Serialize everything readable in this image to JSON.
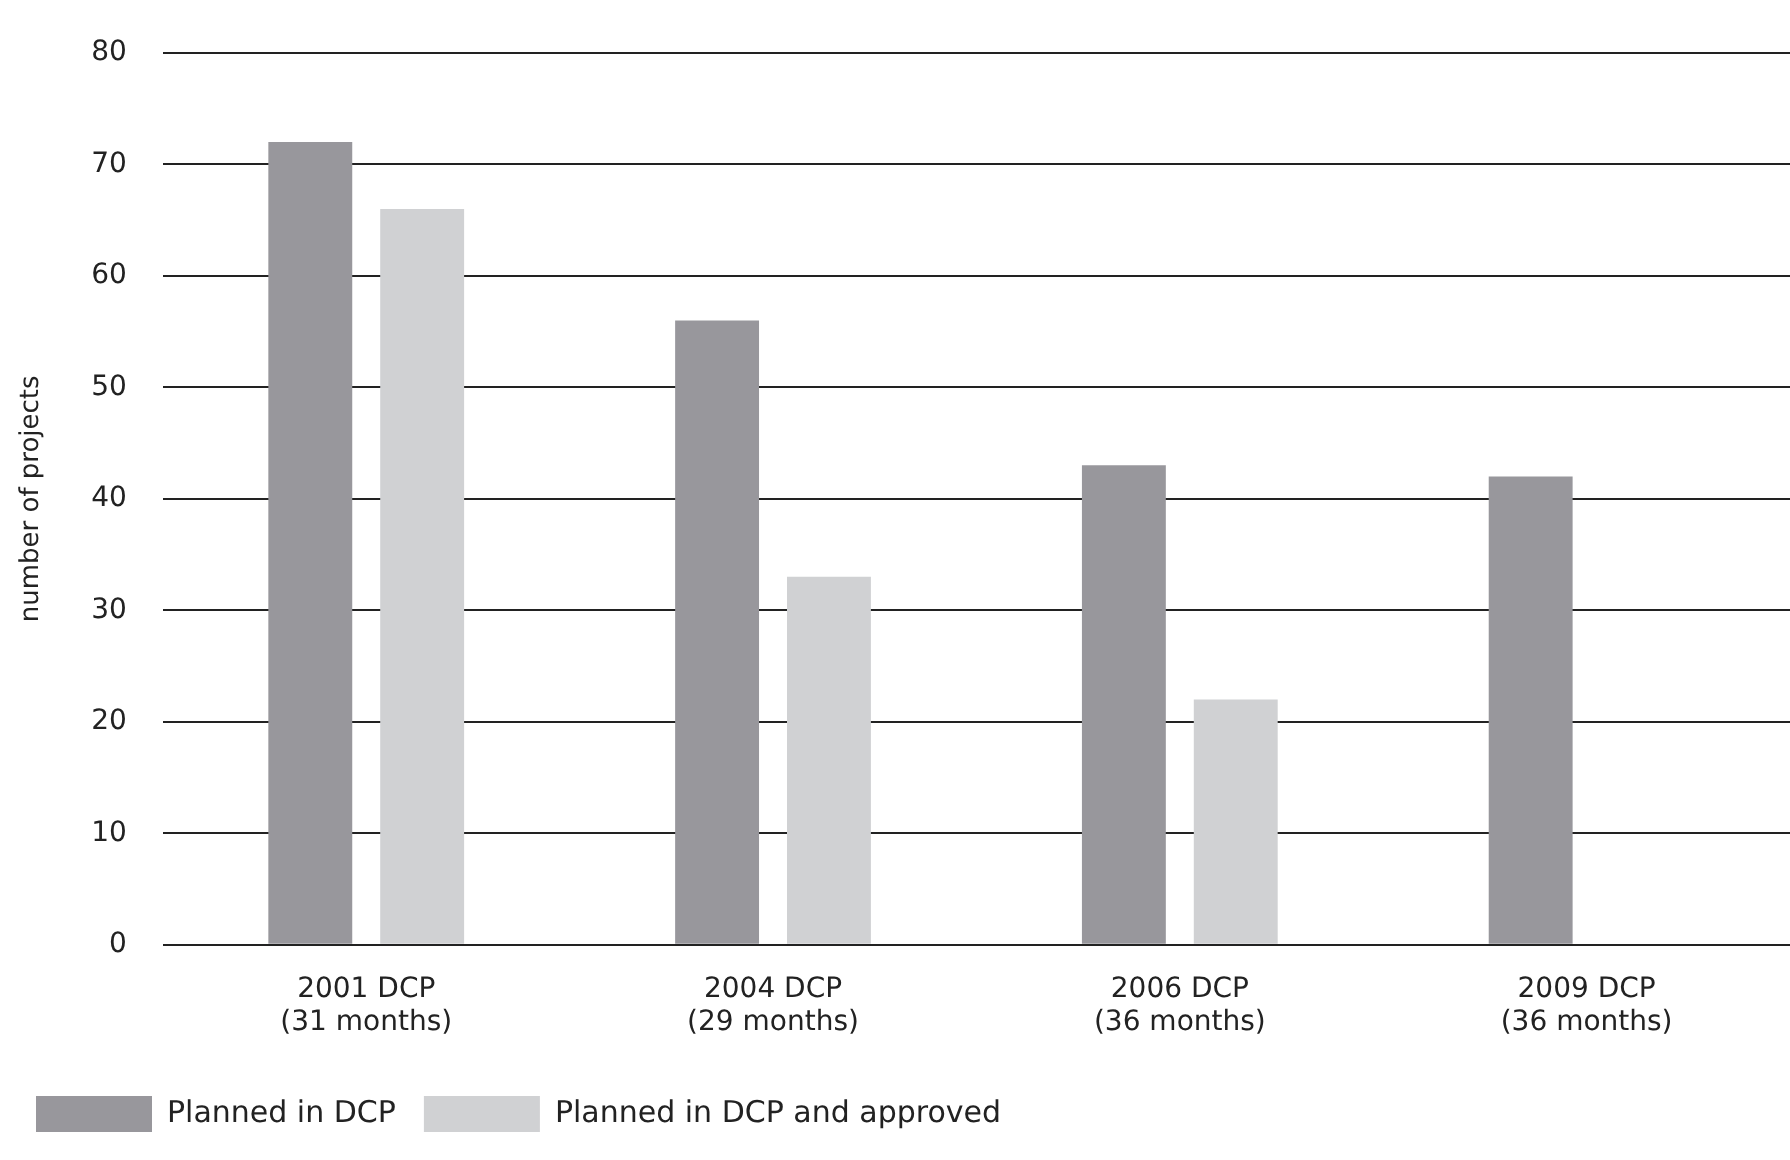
{
  "chart_data": {
    "type": "bar",
    "ylabel": "number of projects",
    "categories": [
      "2001 DCP\n(31 months)",
      "2004 DCP\n(29 months)",
      "2006 DCP\n(36 months)",
      "2009 DCP\n(36 months)"
    ],
    "series": [
      {
        "name": "Planned in DCP",
        "color": "#98979c",
        "values": [
          72,
          56,
          43,
          42
        ]
      },
      {
        "name": "Planned in DCP and approved",
        "color": "#d0d1d3",
        "values": [
          66,
          33,
          22,
          null
        ]
      }
    ],
    "ylim": [
      0,
      80
    ],
    "yticks": [
      0,
      10,
      20,
      30,
      40,
      50,
      60,
      70,
      80
    ],
    "grid": "y",
    "legend": "bottom"
  }
}
